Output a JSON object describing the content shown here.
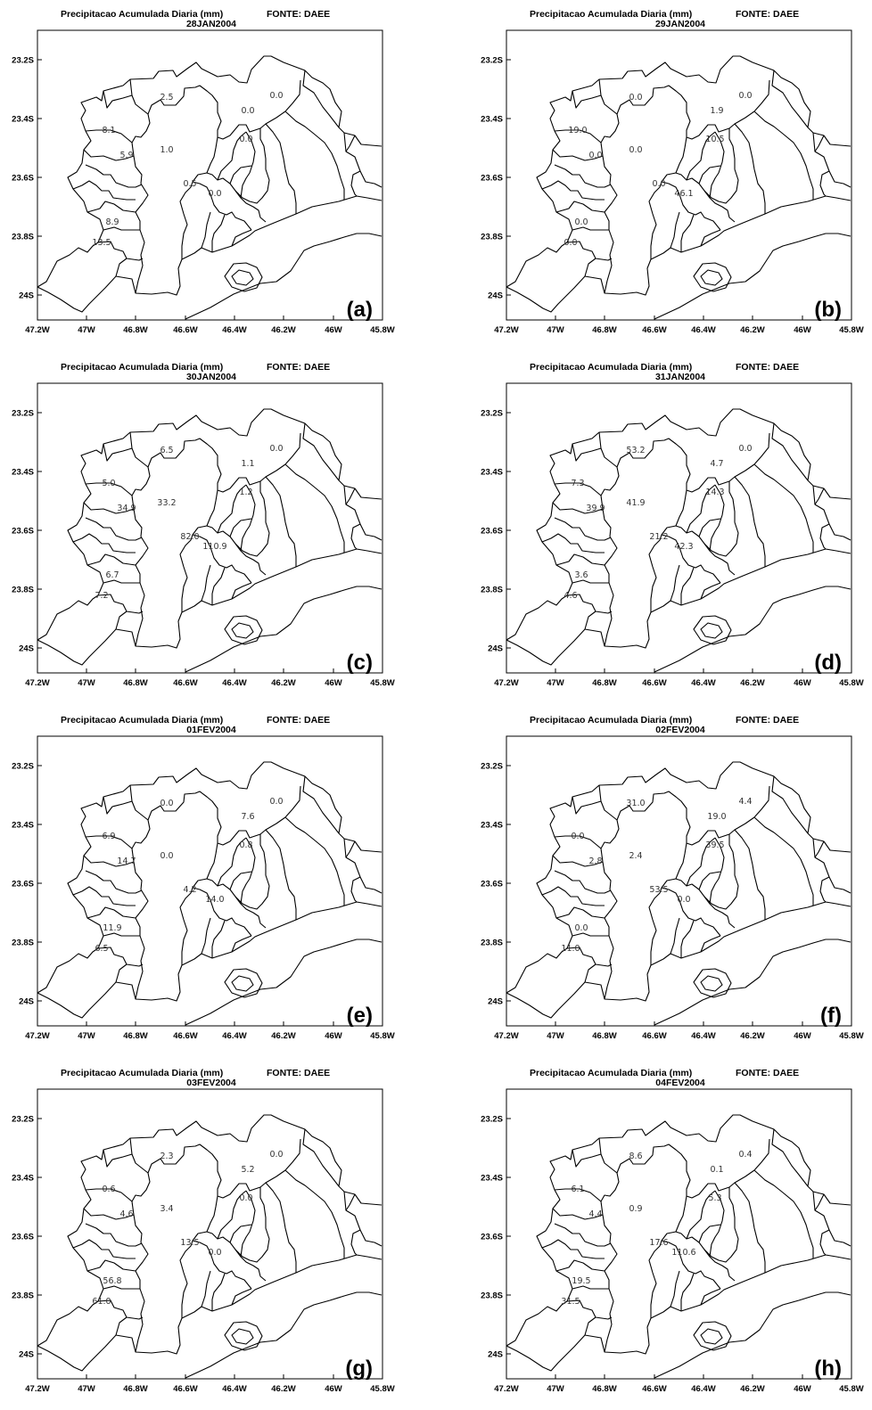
{
  "map_common": {
    "title": "Precipitacao Acumulada Diaria (mm)",
    "source": "FONTE: DAEE",
    "x_ticks": [
      "47.2W",
      "47W",
      "46.8W",
      "46.6W",
      "46.4W",
      "46.2W",
      "46W",
      "45.8W"
    ],
    "y_ticks": [
      "23.2S",
      "23.4S",
      "23.6S",
      "23.8S",
      "24S"
    ]
  },
  "panels": [
    {
      "letter": "(a)",
      "date": "28JAN2004",
      "values": [
        "2.5",
        "0.0",
        "0.0",
        "8.1",
        "1.0",
        "0.0",
        "5.9",
        "0.5",
        "0.0",
        "8.9",
        "13.5"
      ]
    },
    {
      "letter": "(b)",
      "date": "29JAN2004",
      "values": [
        "0.0",
        "0.0",
        "1.9",
        "19.0",
        "0.0",
        "10.5",
        "0.0",
        "0.0",
        "46.1",
        "0.0",
        "0.0"
      ]
    },
    {
      "letter": "(c)",
      "date": "30JAN2004",
      "values": [
        "6.5",
        "0.0",
        "1.1",
        "5.0",
        "33.2",
        "1.2",
        "34.9",
        "82.0",
        "110.9",
        "6.7",
        "7.2"
      ]
    },
    {
      "letter": "(d)",
      "date": "31JAN2004",
      "values": [
        "53.2",
        "0.0",
        "4.7",
        "7.3",
        "41.9",
        "14.3",
        "39.9",
        "21.2",
        "42.3",
        "3.6",
        "4.6"
      ]
    },
    {
      "letter": "(e)",
      "date": "01FEV2004",
      "values": [
        "0.0",
        "0.0",
        "7.6",
        "6.9",
        "0.0",
        "0.8",
        "14.7",
        "4.2",
        "14.0",
        "11.9",
        "6.5"
      ]
    },
    {
      "letter": "(f)",
      "date": "02FEV2004",
      "values": [
        "31.0",
        "4.4",
        "19.0",
        "0.0",
        "2.4",
        "39.5",
        "2.8",
        "53.5",
        "0.0",
        "0.0",
        "11.0"
      ]
    },
    {
      "letter": "(g)",
      "date": "03FEV2004",
      "values": [
        "2.3",
        "0.0",
        "5.2",
        "0.6",
        "3.4",
        "0.0",
        "4.6",
        "13.5",
        "0.0",
        "56.8",
        "61.0"
      ]
    },
    {
      "letter": "(h)",
      "date": "04FEV2004",
      "values": [
        "8.6",
        "0.4",
        "0.1",
        "6.1",
        "0.9",
        "5.3",
        "4.4",
        "17.6",
        "110.6",
        "19.5",
        "31.5"
      ]
    }
  ]
}
